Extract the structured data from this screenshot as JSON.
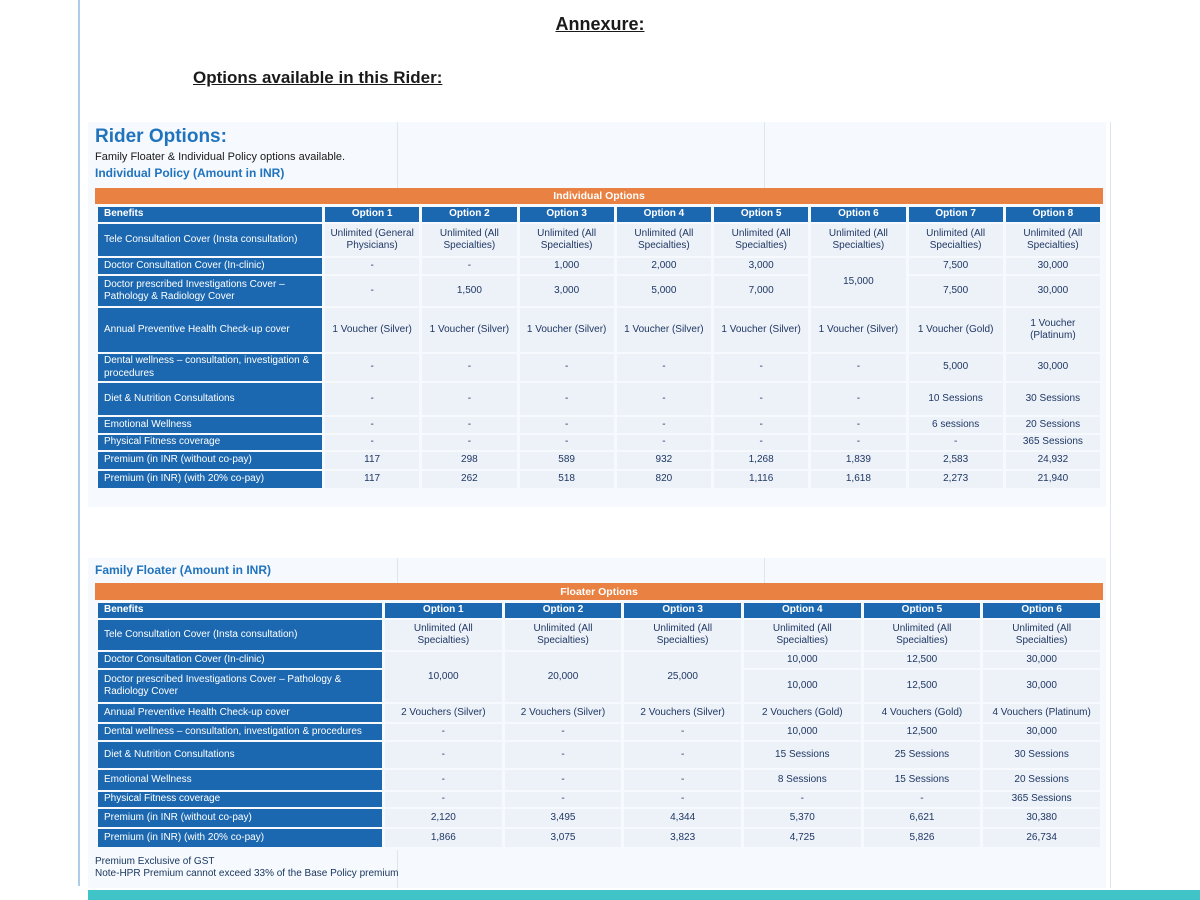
{
  "page": {
    "annexure_title": "Annexure:",
    "options_title": "Options available in this Rider:"
  },
  "rider_card": {
    "heading": "Rider Options:",
    "subheading": "Family Floater & Individual Policy options available.",
    "individual_heading": "Individual Policy (Amount in INR)"
  },
  "individual_table": {
    "banner": "Individual Options",
    "benefits_header": "Benefits",
    "column_headers": [
      "Option 1",
      "Option 2",
      "Option 3",
      "Option 4",
      "Option 5",
      "Option 6",
      "Option 7",
      "Option 8"
    ],
    "rows": [
      {
        "label": "Tele Consultation Cover (Insta consultation)",
        "cells": [
          "Unlimited (General Physicians)",
          "Unlimited (All Specialties)",
          "Unlimited (All Specialties)",
          "Unlimited (All Specialties)",
          "Unlimited (All Specialties)",
          "Unlimited (All Specialties)",
          "Unlimited (All Specialties)",
          "Unlimited (All Specialties)"
        ]
      },
      {
        "label": "Doctor Consultation Cover (In-clinic)",
        "cells": [
          "-",
          "-",
          "1,000",
          "2,000",
          "3,000",
          {
            "text": "15,000",
            "rowspan": 2
          },
          "7,500",
          "30,000"
        ]
      },
      {
        "label": "Doctor prescribed Investigations Cover – Pathology & Radiology Cover",
        "cells": [
          "-",
          "1,500",
          "3,000",
          "5,000",
          "7,000",
          null,
          "7,500",
          "30,000"
        ]
      },
      {
        "label": "Annual Preventive Health Check-up cover",
        "cells": [
          "1 Voucher (Silver)",
          "1 Voucher (Silver)",
          "1 Voucher (Silver)",
          "1 Voucher (Silver)",
          "1 Voucher (Silver)",
          "1 Voucher (Silver)",
          "1 Voucher (Gold)",
          "1 Voucher (Platinum)"
        ]
      },
      {
        "label": "Dental wellness – consultation, investigation & procedures",
        "cells": [
          "-",
          "-",
          "-",
          "-",
          "-",
          "-",
          "5,000",
          "30,000"
        ]
      },
      {
        "label": "Diet & Nutrition Consultations",
        "cells": [
          "-",
          "-",
          "-",
          "-",
          "-",
          "-",
          "10 Sessions",
          "30 Sessions"
        ]
      },
      {
        "label": "Emotional Wellness",
        "cells": [
          "-",
          "-",
          "-",
          "-",
          "-",
          "-",
          "6 sessions",
          "20 Sessions"
        ]
      },
      {
        "label": "Physical Fitness coverage",
        "cells": [
          "-",
          "-",
          "-",
          "-",
          "-",
          "-",
          "-",
          "365 Sessions"
        ]
      },
      {
        "label": "Premium (in INR (without co-pay)",
        "cells": [
          "117",
          "298",
          "589",
          "932",
          "1,268",
          "1,839",
          "2,583",
          "24,932"
        ]
      },
      {
        "label": "Premium (in INR) (with 20% co-pay)",
        "cells": [
          "117",
          "262",
          "518",
          "820",
          "1,116",
          "1,618",
          "2,273",
          "21,940"
        ]
      }
    ]
  },
  "floater_section": {
    "heading": "Family Floater (Amount in INR)"
  },
  "floater_table": {
    "banner": "Floater Options",
    "benefits_header": "Benefits",
    "column_headers": [
      "Option 1",
      "Option 2",
      "Option 3",
      "Option 4",
      "Option 5",
      "Option 6"
    ],
    "rows": [
      {
        "label": "Tele Consultation Cover (Insta consultation)",
        "cells": [
          "Unlimited (All Specialties)",
          "Unlimited (All Specialties)",
          "Unlimited (All Specialties)",
          "Unlimited (All Specialties)",
          "Unlimited (All Specialties)",
          "Unlimited (All Specialties)"
        ]
      },
      {
        "label": "Doctor Consultation Cover (In-clinic)",
        "cells": [
          {
            "text": "10,000",
            "rowspan": 2
          },
          {
            "text": "20,000",
            "rowspan": 2
          },
          {
            "text": "25,000",
            "rowspan": 2
          },
          "10,000",
          "12,500",
          "30,000"
        ]
      },
      {
        "label": "Doctor prescribed Investigations Cover – Pathology & Radiology Cover",
        "cells": [
          null,
          null,
          null,
          "10,000",
          "12,500",
          "30,000"
        ]
      },
      {
        "label": "Annual Preventive Health Check-up cover",
        "cells": [
          "2 Vouchers (Silver)",
          "2 Vouchers (Silver)",
          "2 Vouchers (Silver)",
          "2 Vouchers (Gold)",
          "4 Vouchers (Gold)",
          "4 Vouchers (Platinum)"
        ]
      },
      {
        "label": "Dental wellness – consultation, investigation & procedures",
        "cells": [
          "-",
          "-",
          "-",
          "10,000",
          "12,500",
          "30,000"
        ]
      },
      {
        "label": "Diet & Nutrition Consultations",
        "cells": [
          "-",
          "-",
          "-",
          "15 Sessions",
          "25 Sessions",
          "30 Sessions"
        ]
      },
      {
        "label": "Emotional Wellness",
        "cells": [
          "-",
          "-",
          "-",
          "8 Sessions",
          "15 Sessions",
          "20 Sessions"
        ]
      },
      {
        "label": "Physical Fitness coverage",
        "cells": [
          "-",
          "-",
          "-",
          "-",
          "-",
          "365 Sessions"
        ]
      },
      {
        "label": "Premium (in INR (without co-pay)",
        "cells": [
          "2,120",
          "3,495",
          "4,344",
          "5,370",
          "6,621",
          "30,380"
        ]
      },
      {
        "label": "Premium (in INR) (with 20% co-pay)",
        "cells": [
          "1,866",
          "3,075",
          "3,823",
          "4,725",
          "5,826",
          "26,734"
        ]
      }
    ]
  },
  "footnotes": {
    "line1": "Premium Exclusive of GST",
    "line2": "Note-HPR Premium cannot exceed 33% of the Base Policy premium"
  },
  "colors": {
    "banner_orange": "#E98142",
    "header_blue": "#1C68B0",
    "cell_bg": "#EDF1F8",
    "cell_text": "#1F3864",
    "heading_blue": "#2074BE",
    "teal_band": "#40C4C8",
    "left_line_blue": "#AECDE8"
  }
}
